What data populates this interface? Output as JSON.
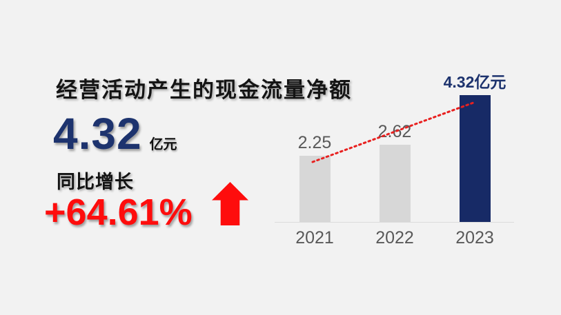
{
  "slide": {
    "title": "经营活动产生的现金流量净额",
    "main_value": "4.32",
    "main_unit": "亿元",
    "growth_label": "同比增长",
    "growth_value": "+64.61%",
    "up_arrow_icon": "block-up-arrow"
  },
  "colors": {
    "background": "#f2f2f2",
    "title_text": "#141414",
    "accent_navy": "#1d336e",
    "bar_gray": "#d7d7d7",
    "bar_navy": "#172a66",
    "accent_red": "#fe0d0d",
    "label_gray": "#595959",
    "axis_line": "#dcdcdc"
  },
  "chart_data": {
    "type": "bar",
    "categories": [
      "2021",
      "2022",
      "2023"
    ],
    "values": [
      2.25,
      2.62,
      4.32
    ],
    "value_labels": [
      "2.25",
      "2.62",
      "4.32亿元"
    ],
    "unit": "亿元",
    "highlight_index": 2,
    "title": "经营活动产生的现金流量净额",
    "xlabel": "",
    "ylabel": "",
    "ylim": [
      0,
      5
    ],
    "grid": false,
    "legend": false,
    "trend_line": {
      "style": "dotted",
      "color": "#e8201f",
      "from_category": "2021",
      "to_category": "2023",
      "direction": "up"
    }
  }
}
